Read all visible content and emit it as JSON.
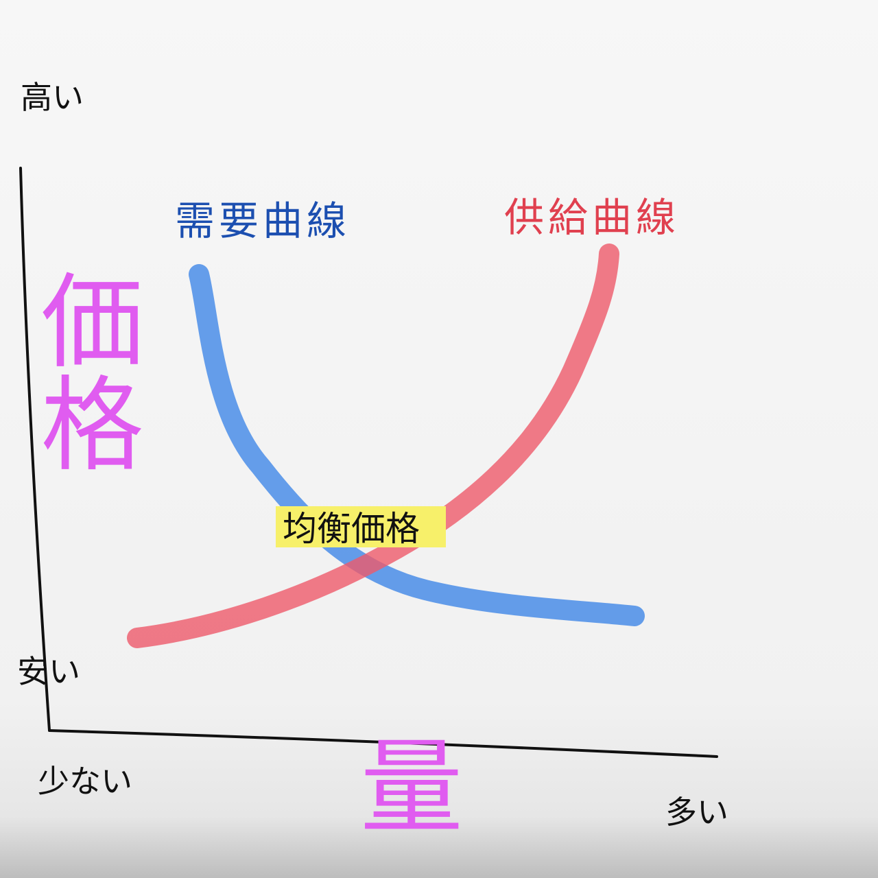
{
  "axes": {
    "y": {
      "title": "価格",
      "high": "高い",
      "low": "安い"
    },
    "x": {
      "title": "量",
      "low": "少ない",
      "high": "多い"
    }
  },
  "curves": {
    "demand": {
      "label": "需要曲線"
    },
    "supply": {
      "label": "供給曲線"
    }
  },
  "equilibrium": {
    "label": "均衡価格"
  }
}
